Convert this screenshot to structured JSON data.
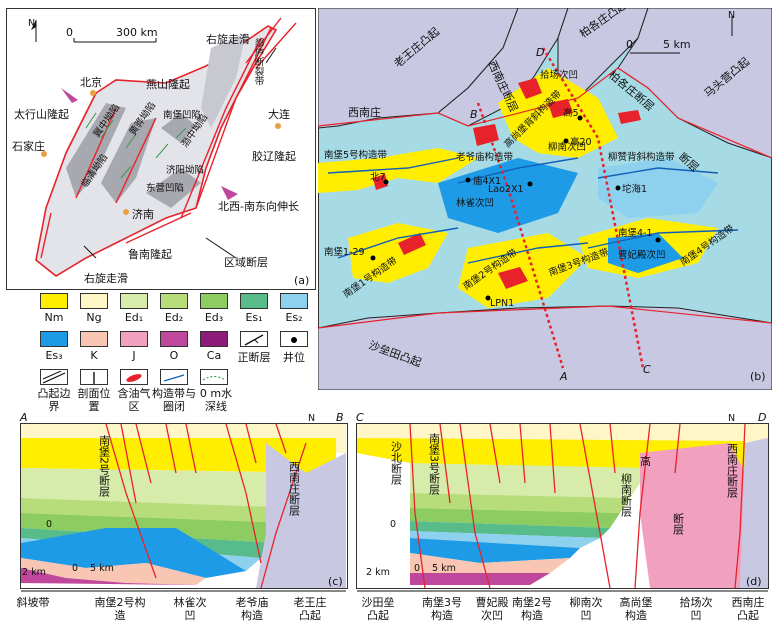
{
  "colors": {
    "Nm": "#ffee00",
    "Ng": "#fff6c8",
    "Ed1": "#d7ecaa",
    "Ed2": "#b7dc7a",
    "Ed3": "#8ccc60",
    "Es1": "#58bb8a",
    "Es2": "#8dd1ef",
    "Es3": "#1e9be6",
    "K": "#f9c6b4",
    "J": "#f1a0c0",
    "O": "#c0489c",
    "Ca": "#8c1c7a",
    "uplift": "#c8c8e2",
    "fault": "#e8222a",
    "oil": "#e8222a",
    "basin_bg": "#c8c8e2",
    "sea": "#a6dbe6",
    "well": "#000000"
  },
  "panel_a": {
    "label": "(a)",
    "north": "N",
    "scale": {
      "zero": "0",
      "value": "300 km"
    },
    "place_labels": [
      {
        "id": "beijing",
        "text": "北京"
      },
      {
        "id": "yanshan",
        "text": "燕山隆起"
      },
      {
        "id": "taihang",
        "text": "太行山隆起"
      },
      {
        "id": "shijiazhuang",
        "text": "石家庄"
      },
      {
        "id": "jizhong",
        "text": "冀中坳陷"
      },
      {
        "id": "huanghua",
        "text": "黄骅坳陷"
      },
      {
        "id": "linqing",
        "text": "临清坳陷"
      },
      {
        "id": "nanpu",
        "text": "南堡凹陷"
      },
      {
        "id": "bozhong",
        "text": "渤中坳陷"
      },
      {
        "id": "jiyang",
        "text": "济阳坳陷"
      },
      {
        "id": "dongying",
        "text": "东营凹陷"
      },
      {
        "id": "jinan",
        "text": "济南"
      },
      {
        "id": "luxinan",
        "text": "鲁南隆起"
      },
      {
        "id": "dalian",
        "text": "大连"
      },
      {
        "id": "jiaoliao",
        "text": "胶辽隆起"
      },
      {
        "id": "tanlu",
        "text": "郯庐断裂带"
      },
      {
        "id": "ext",
        "text": "北西-南东向伸长"
      },
      {
        "id": "regional",
        "text": "区域断层"
      },
      {
        "id": "rs1",
        "text": "右旋走滑"
      },
      {
        "id": "rs2",
        "text": "右旋走滑"
      }
    ]
  },
  "panel_b": {
    "label": "(b)",
    "north": "N",
    "scale": {
      "zero": "0",
      "value": "5 km"
    },
    "profile_ends": {
      "A": "A",
      "B": "B",
      "C": "C",
      "D": "D"
    },
    "uplift_labels": [
      {
        "id": "laowangzhuang",
        "text": "老王庄凸起"
      },
      {
        "id": "xinanzhuang",
        "text": "西南庄断层"
      },
      {
        "id": "baigezhuang",
        "text": "柏各庄凸起"
      },
      {
        "id": "matouying",
        "text": "马头营凸起"
      },
      {
        "id": "duanceng",
        "text": "断层"
      },
      {
        "id": "shatian",
        "text": "沙垒田凸起"
      },
      {
        "id": "xinanzhuang2",
        "text": "西南庄"
      },
      {
        "id": "bgz_dc",
        "text": "柏各庄断层"
      }
    ],
    "structure_labels": [
      {
        "id": "nb5",
        "text": "南堡5号构造带"
      },
      {
        "id": "lym",
        "text": "老爷庙构造带"
      },
      {
        "id": "gsb",
        "text": "高尚堡背斜构造带"
      },
      {
        "id": "liuzan",
        "text": "柳赞背斜构造带"
      },
      {
        "id": "nb1",
        "text": "南堡1号构造带"
      },
      {
        "id": "nb2",
        "text": "南堡2号构造带"
      },
      {
        "id": "nb3",
        "text": "南堡3号构造带"
      },
      {
        "id": "nb4",
        "text": "南堡4号构造带"
      },
      {
        "id": "linque",
        "text": "林雀次凹"
      },
      {
        "id": "liunan",
        "text": "柳南次凹"
      },
      {
        "id": "shichang",
        "text": "拾场次凹"
      },
      {
        "id": "caofeidian",
        "text": "曹妃殿次凹"
      }
    ],
    "wells": [
      {
        "id": "bei7",
        "text": "北7"
      },
      {
        "id": "miao4x1",
        "text": "庙4X1"
      },
      {
        "id": "lao2x1",
        "text": "Lao2X1"
      },
      {
        "id": "gao5",
        "text": "高5"
      },
      {
        "id": "gao20",
        "text": "高20"
      },
      {
        "id": "tuohai1",
        "text": "坨海1"
      },
      {
        "id": "nb1_29",
        "text": "南堡1-29"
      },
      {
        "id": "nb4_1",
        "text": "南堡4-1"
      },
      {
        "id": "lpn1",
        "text": "LPN1"
      }
    ]
  },
  "legend": {
    "items": [
      {
        "key": "Nm",
        "label": "Nm"
      },
      {
        "key": "Ng",
        "label": "Ng"
      },
      {
        "key": "Ed1",
        "label": "Ed₁"
      },
      {
        "key": "Ed2",
        "label": "Ed₂"
      },
      {
        "key": "Ed3",
        "label": "Ed₃"
      },
      {
        "key": "Es1",
        "label": "Es₁"
      },
      {
        "key": "Es2",
        "label": "Es₂"
      },
      {
        "key": "Es3",
        "label": "Es₃"
      },
      {
        "key": "K",
        "label": "K"
      },
      {
        "key": "J",
        "label": "J"
      },
      {
        "key": "O",
        "label": "O"
      },
      {
        "key": "Ca",
        "label": "Ca"
      }
    ],
    "normal_fault": "正断层",
    "well": "井位",
    "uplift_boundary": "凸起边界",
    "section_position": "剖面位置",
    "oil_area": "含油气区",
    "structure_trap": "构造带与圈闭",
    "depth_line": "0 m水深线"
  },
  "panel_c": {
    "label": "(c)",
    "left_end": "A",
    "right_end": "B",
    "north": "N",
    "depth_zero": "0",
    "depth_two": "2 km",
    "scale": {
      "zero": "0",
      "value": "5 km"
    },
    "fault_labels": [
      {
        "id": "nb2_fault",
        "text": "南堡2号断层"
      },
      {
        "id": "xnz_fault",
        "text": "西南庄断层"
      }
    ],
    "segments": [
      {
        "id": "xpd",
        "text": "斜坡带"
      },
      {
        "id": "nb2",
        "text": "南堡2号构造"
      },
      {
        "id": "lq",
        "text": "林雀次凹"
      },
      {
        "id": "lym",
        "text": "老爷庙构造"
      },
      {
        "id": "lwz",
        "text": "老王庄凸起"
      }
    ]
  },
  "panel_d": {
    "label": "(d)",
    "left_end": "C",
    "right_end": "D",
    "north": "N",
    "depth_zero": "0",
    "depth_two": "2 km",
    "scale": {
      "zero": "0",
      "value": "5 km"
    },
    "fault_labels": [
      {
        "id": "sb",
        "text": "沙北断层"
      },
      {
        "id": "nb3",
        "text": "南堡3号断层"
      },
      {
        "id": "ln",
        "text": "柳南断层"
      },
      {
        "id": "gao",
        "text": "高"
      },
      {
        "id": "xnz",
        "text": "西南庄断层"
      },
      {
        "id": "cf",
        "text": "断层"
      }
    ],
    "segments": [
      {
        "id": "stl",
        "text": "沙田垒凸起"
      },
      {
        "id": "nb3",
        "text": "南堡3号构造"
      },
      {
        "id": "cfd",
        "text": "曹妃殿次凹"
      },
      {
        "id": "nb2",
        "text": "南堡2号构造"
      },
      {
        "id": "ln",
        "text": "柳南次凹"
      },
      {
        "id": "gsb",
        "text": "高尚堡构造"
      },
      {
        "id": "sc",
        "text": "拾场次凹"
      },
      {
        "id": "xnz",
        "text": "西南庄凸起"
      }
    ]
  }
}
